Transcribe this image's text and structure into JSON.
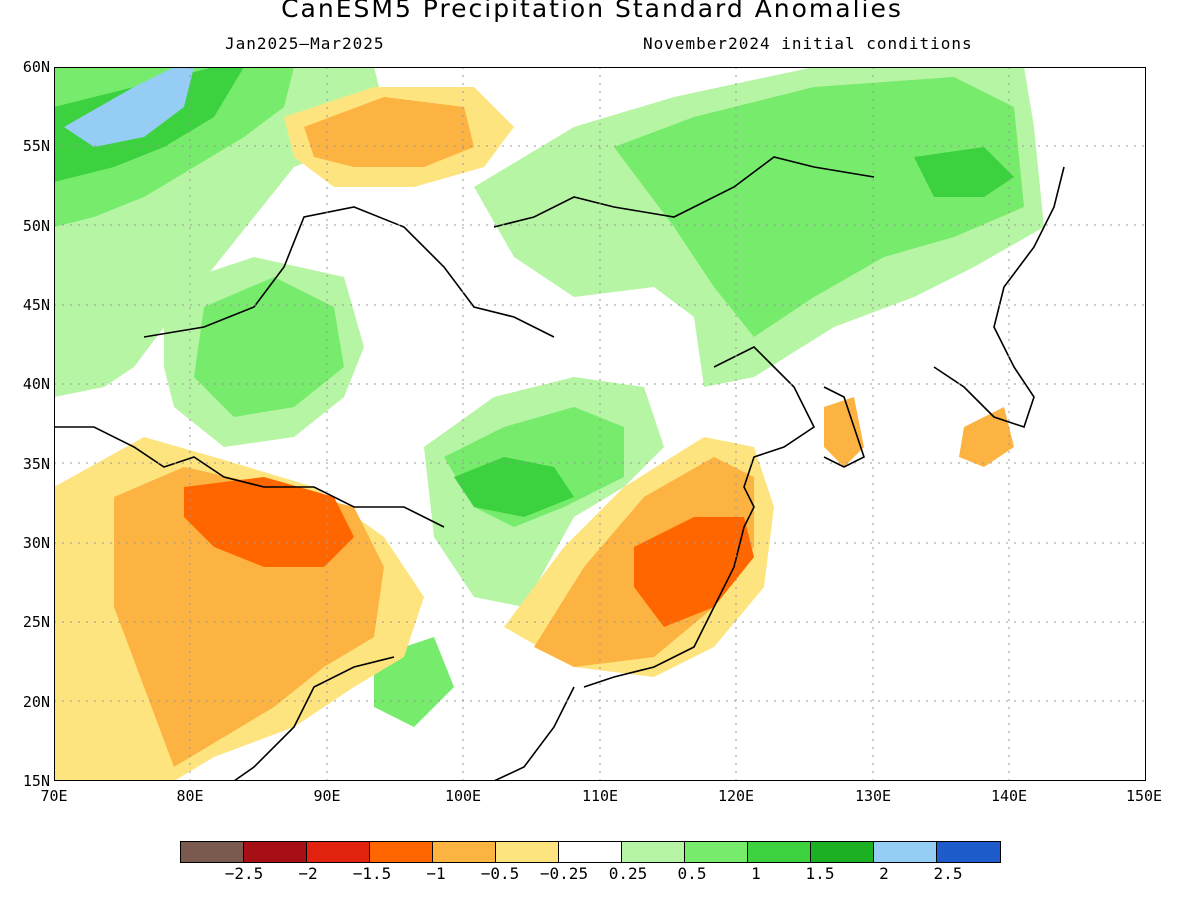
{
  "header": {
    "title": "CanESM5 Precipitation Standard Anomalies",
    "period": "Jan2025–Mar2025",
    "initial_conditions": "November2024 initial conditions"
  },
  "axes": {
    "lat_labels": [
      "60N",
      "55N",
      "50N",
      "45N",
      "40N",
      "35N",
      "30N",
      "25N",
      "20N",
      "15N"
    ],
    "lon_labels": [
      "70E",
      "80E",
      "90E",
      "100E",
      "110E",
      "120E",
      "130E",
      "140E",
      "150E"
    ],
    "lat_range": [
      15,
      60
    ],
    "lon_range": [
      70,
      150
    ]
  },
  "colorbar": {
    "colors": [
      "#7a5a4e",
      "#a50f15",
      "#e0220e",
      "#ff6600",
      "#fcb341",
      "#fde47e",
      "#ffffff",
      "#b6f5a4",
      "#76eb6c",
      "#3cd23f",
      "#1cb123",
      "#96cdf5",
      "#1e5ccc"
    ],
    "tick_labels": [
      "−2.5",
      "−2",
      "−1.5",
      "−1",
      "−0.5",
      "−0.25",
      "0.25",
      "0.5",
      "1",
      "1.5",
      "2",
      "2.5"
    ]
  }
}
